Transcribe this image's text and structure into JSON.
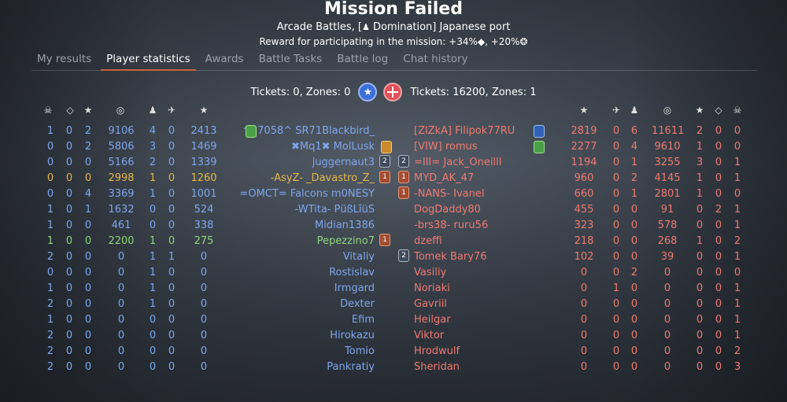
{
  "header": {
    "title": "Mission Failed",
    "subtitle_prefix": "Arcade Battles, [",
    "subtitle_mode": " Domination] Japanese port",
    "reward": "Reward for participating in the mission: +34%◆, +20%❂"
  },
  "tabs": [
    {
      "label": "My results",
      "active": false
    },
    {
      "label": "Player statistics",
      "active": true
    },
    {
      "label": "Awards",
      "active": false
    },
    {
      "label": "Battle Tasks",
      "active": false
    },
    {
      "label": "Battle log",
      "active": false
    },
    {
      "label": "Chat history",
      "active": false
    }
  ],
  "tickets": {
    "left": "Tickets: 0, Zones: 0",
    "right": "Tickets: 16200, Zones: 1"
  },
  "columns_icons": {
    "assists": "☠",
    "deaths": "◇",
    "captures": "★",
    "score": "◎",
    "ground": "♟",
    "air": "✈",
    "rank": "★"
  },
  "allies": [
    {
      "a": "1",
      "b": "0",
      "c": "2",
      "d": "9106",
      "e": "4",
      "f": "0",
      "g": "2413",
      "name": "^27058^ SR71Blackbird_",
      "color": "blue",
      "badge": "green",
      "rank": ""
    },
    {
      "a": "0",
      "b": "0",
      "c": "2",
      "d": "5806",
      "e": "3",
      "f": "0",
      "g": "1469",
      "name": "✖Mq1✖ MolLusk",
      "color": "blue",
      "badge": "gold",
      "rank": ""
    },
    {
      "a": "0",
      "b": "0",
      "c": "0",
      "d": "5166",
      "e": "2",
      "f": "0",
      "g": "1339",
      "name": "juggernaut3",
      "color": "blue",
      "badge": "",
      "rank": "2"
    },
    {
      "a": "0",
      "b": "0",
      "c": "0",
      "d": "2998",
      "e": "1",
      "f": "0",
      "g": "1260",
      "name": "-AsyZ- _Davastro_Z_",
      "color": "gold",
      "badge": "",
      "rank": "1"
    },
    {
      "a": "0",
      "b": "0",
      "c": "4",
      "d": "3369",
      "e": "1",
      "f": "0",
      "g": "1001",
      "name": "=OMCT= Falcons m0NESY",
      "color": "blue",
      "badge": "",
      "rank": ""
    },
    {
      "a": "1",
      "b": "0",
      "c": "1",
      "d": "1632",
      "e": "0",
      "f": "0",
      "g": "524",
      "name": "-WTita- PüßLîüS",
      "color": "blue",
      "badge": "",
      "rank": ""
    },
    {
      "a": "1",
      "b": "0",
      "c": "0",
      "d": "461",
      "e": "0",
      "f": "0",
      "g": "338",
      "name": "Midian1386",
      "color": "blue",
      "badge": "",
      "rank": ""
    },
    {
      "a": "1",
      "b": "0",
      "c": "0",
      "d": "2200",
      "e": "1",
      "f": "0",
      "g": "275",
      "name": "Pepezzino7",
      "color": "green",
      "badge": "",
      "rank": "1"
    },
    {
      "a": "2",
      "b": "0",
      "c": "0",
      "d": "0",
      "e": "1",
      "f": "1",
      "g": "0",
      "name": "Vitaliy",
      "color": "blue",
      "badge": "",
      "rank": ""
    },
    {
      "a": "0",
      "b": "0",
      "c": "0",
      "d": "0",
      "e": "1",
      "f": "0",
      "g": "0",
      "name": "Rostislav",
      "color": "blue",
      "badge": "",
      "rank": ""
    },
    {
      "a": "1",
      "b": "0",
      "c": "0",
      "d": "0",
      "e": "1",
      "f": "0",
      "g": "0",
      "name": "Irmgard",
      "color": "blue",
      "badge": "",
      "rank": ""
    },
    {
      "a": "2",
      "b": "0",
      "c": "0",
      "d": "0",
      "e": "1",
      "f": "0",
      "g": "0",
      "name": "Dexter",
      "color": "blue",
      "badge": "",
      "rank": ""
    },
    {
      "a": "1",
      "b": "0",
      "c": "0",
      "d": "0",
      "e": "0",
      "f": "0",
      "g": "0",
      "name": "Efim",
      "color": "blue",
      "badge": "",
      "rank": ""
    },
    {
      "a": "2",
      "b": "0",
      "c": "0",
      "d": "0",
      "e": "0",
      "f": "0",
      "g": "0",
      "name": "Hirokazu",
      "color": "blue",
      "badge": "",
      "rank": ""
    },
    {
      "a": "2",
      "b": "0",
      "c": "0",
      "d": "0",
      "e": "0",
      "f": "0",
      "g": "0",
      "name": "Tomio",
      "color": "blue",
      "badge": "",
      "rank": ""
    },
    {
      "a": "2",
      "b": "0",
      "c": "0",
      "d": "0",
      "e": "0",
      "f": "0",
      "g": "0",
      "name": "Pankratiy",
      "color": "blue",
      "badge": "",
      "rank": ""
    }
  ],
  "enemies": [
    {
      "name": "[ZlZkA] Filipok77RU",
      "g": "2819",
      "f": "0",
      "e": "6",
      "d": "11611",
      "c": "2",
      "b": "0",
      "a": "0",
      "badge": "blue",
      "rank": ""
    },
    {
      "name": "[VIW] romus",
      "g": "2277",
      "f": "0",
      "e": "4",
      "d": "9610",
      "c": "1",
      "b": "0",
      "a": "0",
      "badge": "green",
      "rank": ""
    },
    {
      "name": "=III= Jack_Oneilll",
      "g": "1194",
      "f": "0",
      "e": "1",
      "d": "3255",
      "c": "3",
      "b": "0",
      "a": "1",
      "badge": "",
      "rank": "2"
    },
    {
      "name": "MYD_AK_47",
      "g": "960",
      "f": "0",
      "e": "2",
      "d": "4145",
      "c": "1",
      "b": "0",
      "a": "1",
      "badge": "",
      "rank": "1"
    },
    {
      "name": "-NANS- Ivanel",
      "g": "660",
      "f": "0",
      "e": "1",
      "d": "2801",
      "c": "1",
      "b": "0",
      "a": "0",
      "badge": "",
      "rank": "1"
    },
    {
      "name": "DogDaddy80",
      "g": "455",
      "f": "0",
      "e": "0",
      "d": "91",
      "c": "0",
      "b": "2",
      "a": "1",
      "badge": "",
      "rank": "",
      "pad": true
    },
    {
      "name": "-brs38- ruru56",
      "g": "323",
      "f": "0",
      "e": "0",
      "d": "578",
      "c": "0",
      "b": "0",
      "a": "1",
      "badge": "",
      "rank": ""
    },
    {
      "name": "dzeffi",
      "g": "218",
      "f": "0",
      "e": "0",
      "d": "268",
      "c": "1",
      "b": "0",
      "a": "2",
      "badge": "",
      "rank": ""
    },
    {
      "name": "Tomek Bary76",
      "g": "102",
      "f": "0",
      "e": "0",
      "d": "39",
      "c": "0",
      "b": "0",
      "a": "1",
      "badge": "",
      "rank": "2",
      "pad": true
    },
    {
      "name": "Vasiliy",
      "g": "0",
      "f": "0",
      "e": "2",
      "d": "0",
      "c": "0",
      "b": "0",
      "a": "0",
      "badge": "",
      "rank": ""
    },
    {
      "name": "Noriaki",
      "g": "0",
      "f": "1",
      "e": "0",
      "d": "0",
      "c": "0",
      "b": "0",
      "a": "1",
      "badge": "",
      "rank": ""
    },
    {
      "name": "Gavriil",
      "g": "0",
      "f": "0",
      "e": "0",
      "d": "0",
      "c": "0",
      "b": "0",
      "a": "1",
      "badge": "",
      "rank": ""
    },
    {
      "name": "Heilgar",
      "g": "0",
      "f": "0",
      "e": "0",
      "d": "0",
      "c": "0",
      "b": "0",
      "a": "1",
      "badge": "",
      "rank": ""
    },
    {
      "name": "Viktor",
      "g": "0",
      "f": "0",
      "e": "0",
      "d": "0",
      "c": "0",
      "b": "0",
      "a": "1",
      "badge": "",
      "rank": ""
    },
    {
      "name": "Hrodwulf",
      "g": "0",
      "f": "0",
      "e": "0",
      "d": "0",
      "c": "0",
      "b": "0",
      "a": "2",
      "badge": "",
      "rank": ""
    },
    {
      "name": "Sheridan",
      "g": "0",
      "f": "0",
      "e": "0",
      "d": "0",
      "c": "0",
      "b": "0",
      "a": "3",
      "badge": "",
      "rank": ""
    }
  ]
}
